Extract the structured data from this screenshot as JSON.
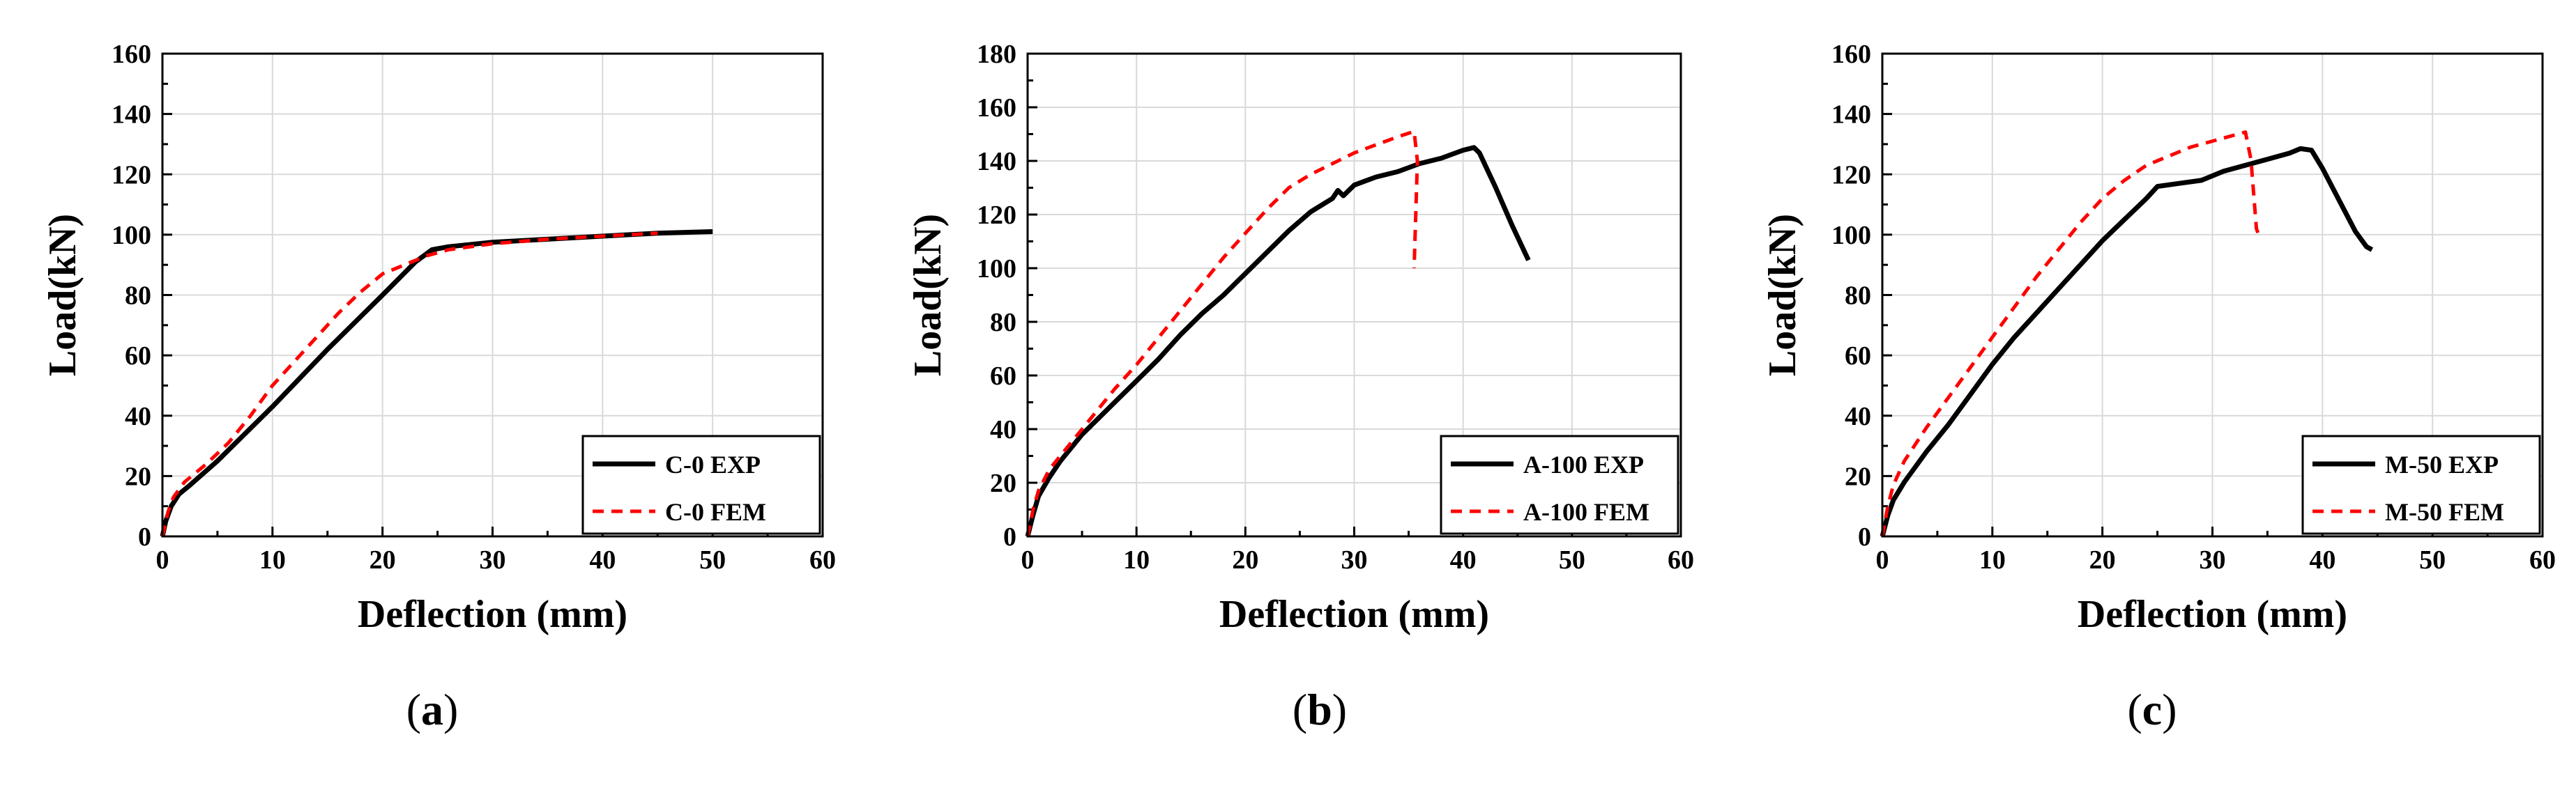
{
  "chart_data": [
    {
      "type": "line",
      "title": "",
      "xlabel": "Deflection (mm)",
      "ylabel": "Load(kN)",
      "xlim": [
        0,
        60
      ],
      "ylim": [
        0,
        160
      ],
      "xticks": [
        0,
        10,
        20,
        30,
        40,
        50,
        60
      ],
      "yticks": [
        0,
        20,
        40,
        60,
        80,
        100,
        120,
        140,
        160
      ],
      "grid": true,
      "legend_position": "bottom-right",
      "caption": "a",
      "series": [
        {
          "name": "C-0 EXP",
          "color": "#000000",
          "style": "solid",
          "x": [
            0,
            0.3,
            0.8,
            1.5,
            2.5,
            5,
            10,
            15,
            20,
            23,
            24.5,
            26,
            30,
            35,
            40,
            45,
            50
          ],
          "y": [
            0,
            5,
            10,
            14,
            17,
            25,
            43,
            62,
            80,
            91,
            95,
            96,
            97.5,
            98.5,
            99.5,
            100.5,
            101
          ]
        },
        {
          "name": "C-0 FEM",
          "color": "#ff0000",
          "style": "dashed",
          "x": [
            0,
            0.5,
            1,
            2,
            4,
            6,
            8,
            10,
            12,
            14,
            16,
            18,
            20,
            22,
            24,
            26,
            30,
            35,
            40,
            45
          ],
          "y": [
            0,
            8,
            13,
            18,
            24,
            31,
            40,
            50,
            58,
            66,
            74,
            81,
            87,
            90,
            93,
            95,
            97,
            98.5,
            99.5,
            100.5
          ]
        }
      ]
    },
    {
      "type": "line",
      "title": "",
      "xlabel": "Deflection (mm)",
      "ylabel": "Load(kN)",
      "xlim": [
        0,
        60
      ],
      "ylim": [
        0,
        180
      ],
      "xticks": [
        0,
        10,
        20,
        30,
        40,
        50,
        60
      ],
      "yticks": [
        0,
        20,
        40,
        60,
        80,
        100,
        120,
        140,
        160,
        180
      ],
      "grid": true,
      "legend_position": "bottom-right",
      "caption": "b",
      "series": [
        {
          "name": "A-100 EXP",
          "color": "#000000",
          "style": "solid",
          "x": [
            0,
            0.5,
            1,
            2,
            3,
            5,
            8,
            10,
            12,
            14,
            16,
            18,
            20,
            22,
            24,
            26,
            28,
            28.5,
            29,
            30,
            32,
            34,
            36,
            38,
            40,
            41,
            41.5,
            43,
            44.5,
            46
          ],
          "y": [
            0,
            8,
            15,
            22,
            28,
            38,
            50,
            58,
            66,
            75,
            83,
            90,
            98,
            106,
            114,
            121,
            126,
            129,
            127,
            131,
            134,
            136,
            139,
            141,
            144,
            145,
            143,
            130,
            116,
            103
          ]
        },
        {
          "name": "A-100 FEM",
          "color": "#ff0000",
          "style": "dashed",
          "x": [
            0,
            0.5,
            1,
            2,
            4,
            6,
            8,
            10,
            12,
            14,
            16,
            18,
            20,
            22,
            24,
            26,
            28,
            30,
            32,
            34,
            35.5,
            35.8,
            35.5
          ],
          "y": [
            0,
            10,
            17,
            25,
            35,
            45,
            55,
            64,
            74,
            84,
            94,
            104,
            113,
            122,
            130,
            135,
            139,
            143,
            146,
            149,
            151,
            140,
            100
          ]
        }
      ]
    },
    {
      "type": "line",
      "title": "",
      "xlabel": "Deflection (mm)",
      "ylabel": "Load(kN)",
      "xlim": [
        0,
        60
      ],
      "ylim": [
        0,
        160
      ],
      "xticks": [
        0,
        10,
        20,
        30,
        40,
        50,
        60
      ],
      "yticks": [
        0,
        20,
        40,
        60,
        80,
        100,
        120,
        140,
        160
      ],
      "grid": true,
      "legend_position": "bottom-right",
      "caption": "c",
      "series": [
        {
          "name": "M-50 EXP",
          "color": "#000000",
          "style": "solid",
          "x": [
            0,
            0.5,
            1,
            2,
            4,
            6,
            8,
            10,
            12,
            14,
            16,
            18,
            20,
            22,
            24,
            25,
            27,
            29,
            31,
            33,
            35,
            36,
            37,
            38,
            39,
            40,
            41,
            42,
            43,
            44,
            44.5
          ],
          "y": [
            0,
            7,
            12,
            18,
            28,
            37,
            47,
            57,
            66,
            74,
            82,
            90,
            98,
            105,
            112,
            116,
            117,
            118,
            121,
            123,
            125,
            126,
            127,
            128.5,
            128,
            122,
            115,
            108,
            101,
            96,
            95
          ]
        },
        {
          "name": "M-50 FEM",
          "color": "#ff0000",
          "style": "dashed",
          "x": [
            0,
            0.5,
            1,
            2,
            4,
            6,
            8,
            10,
            12,
            14,
            16,
            18,
            20,
            22,
            24,
            26,
            28,
            30,
            32,
            33,
            33.5,
            34,
            34.2
          ],
          "y": [
            0,
            10,
            17,
            25,
            36,
            46,
            56,
            66,
            76,
            86,
            95,
            104,
            112,
            118,
            123,
            126,
            129,
            131,
            133,
            134,
            125,
            102,
            100
          ]
        }
      ]
    }
  ]
}
